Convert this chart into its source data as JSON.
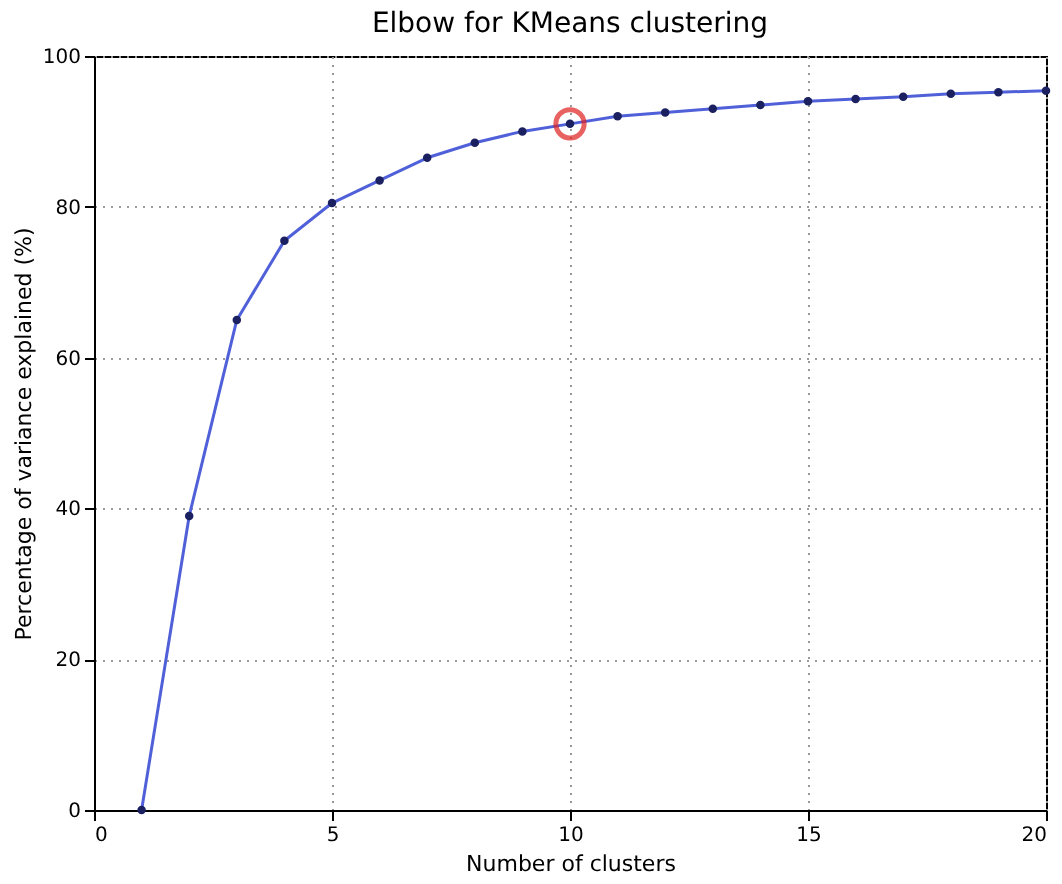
{
  "chart_data": {
    "type": "line",
    "title": "Elbow for KMeans clustering",
    "xlabel": "Number of clusters",
    "ylabel": "Percentage of variance explained (%)",
    "xlim": [
      0,
      20
    ],
    "xticks": [
      0,
      5,
      10,
      15,
      20
    ],
    "ylim": [
      0,
      100
    ],
    "yticks": [
      0,
      20,
      40,
      60,
      80,
      100
    ],
    "grid": true,
    "series": [
      {
        "marker": "circle",
        "color": "#5060d8",
        "x": [
          1,
          2,
          3,
          4,
          5,
          6,
          7,
          8,
          9,
          10,
          11,
          12,
          13,
          14,
          15,
          16,
          17,
          18,
          19,
          20
        ],
        "values": [
          0,
          39,
          65,
          75.5,
          80.5,
          83.5,
          86.5,
          88.5,
          90,
          91,
          92,
          92.5,
          93,
          93.5,
          94,
          94.3,
          94.6,
          95,
          95.2,
          95.4
        ]
      },
      {
        "type": "scatter",
        "marker": "circle",
        "color": "#e02020",
        "x": [
          10
        ],
        "values": [
          91
        ]
      }
    ]
  }
}
